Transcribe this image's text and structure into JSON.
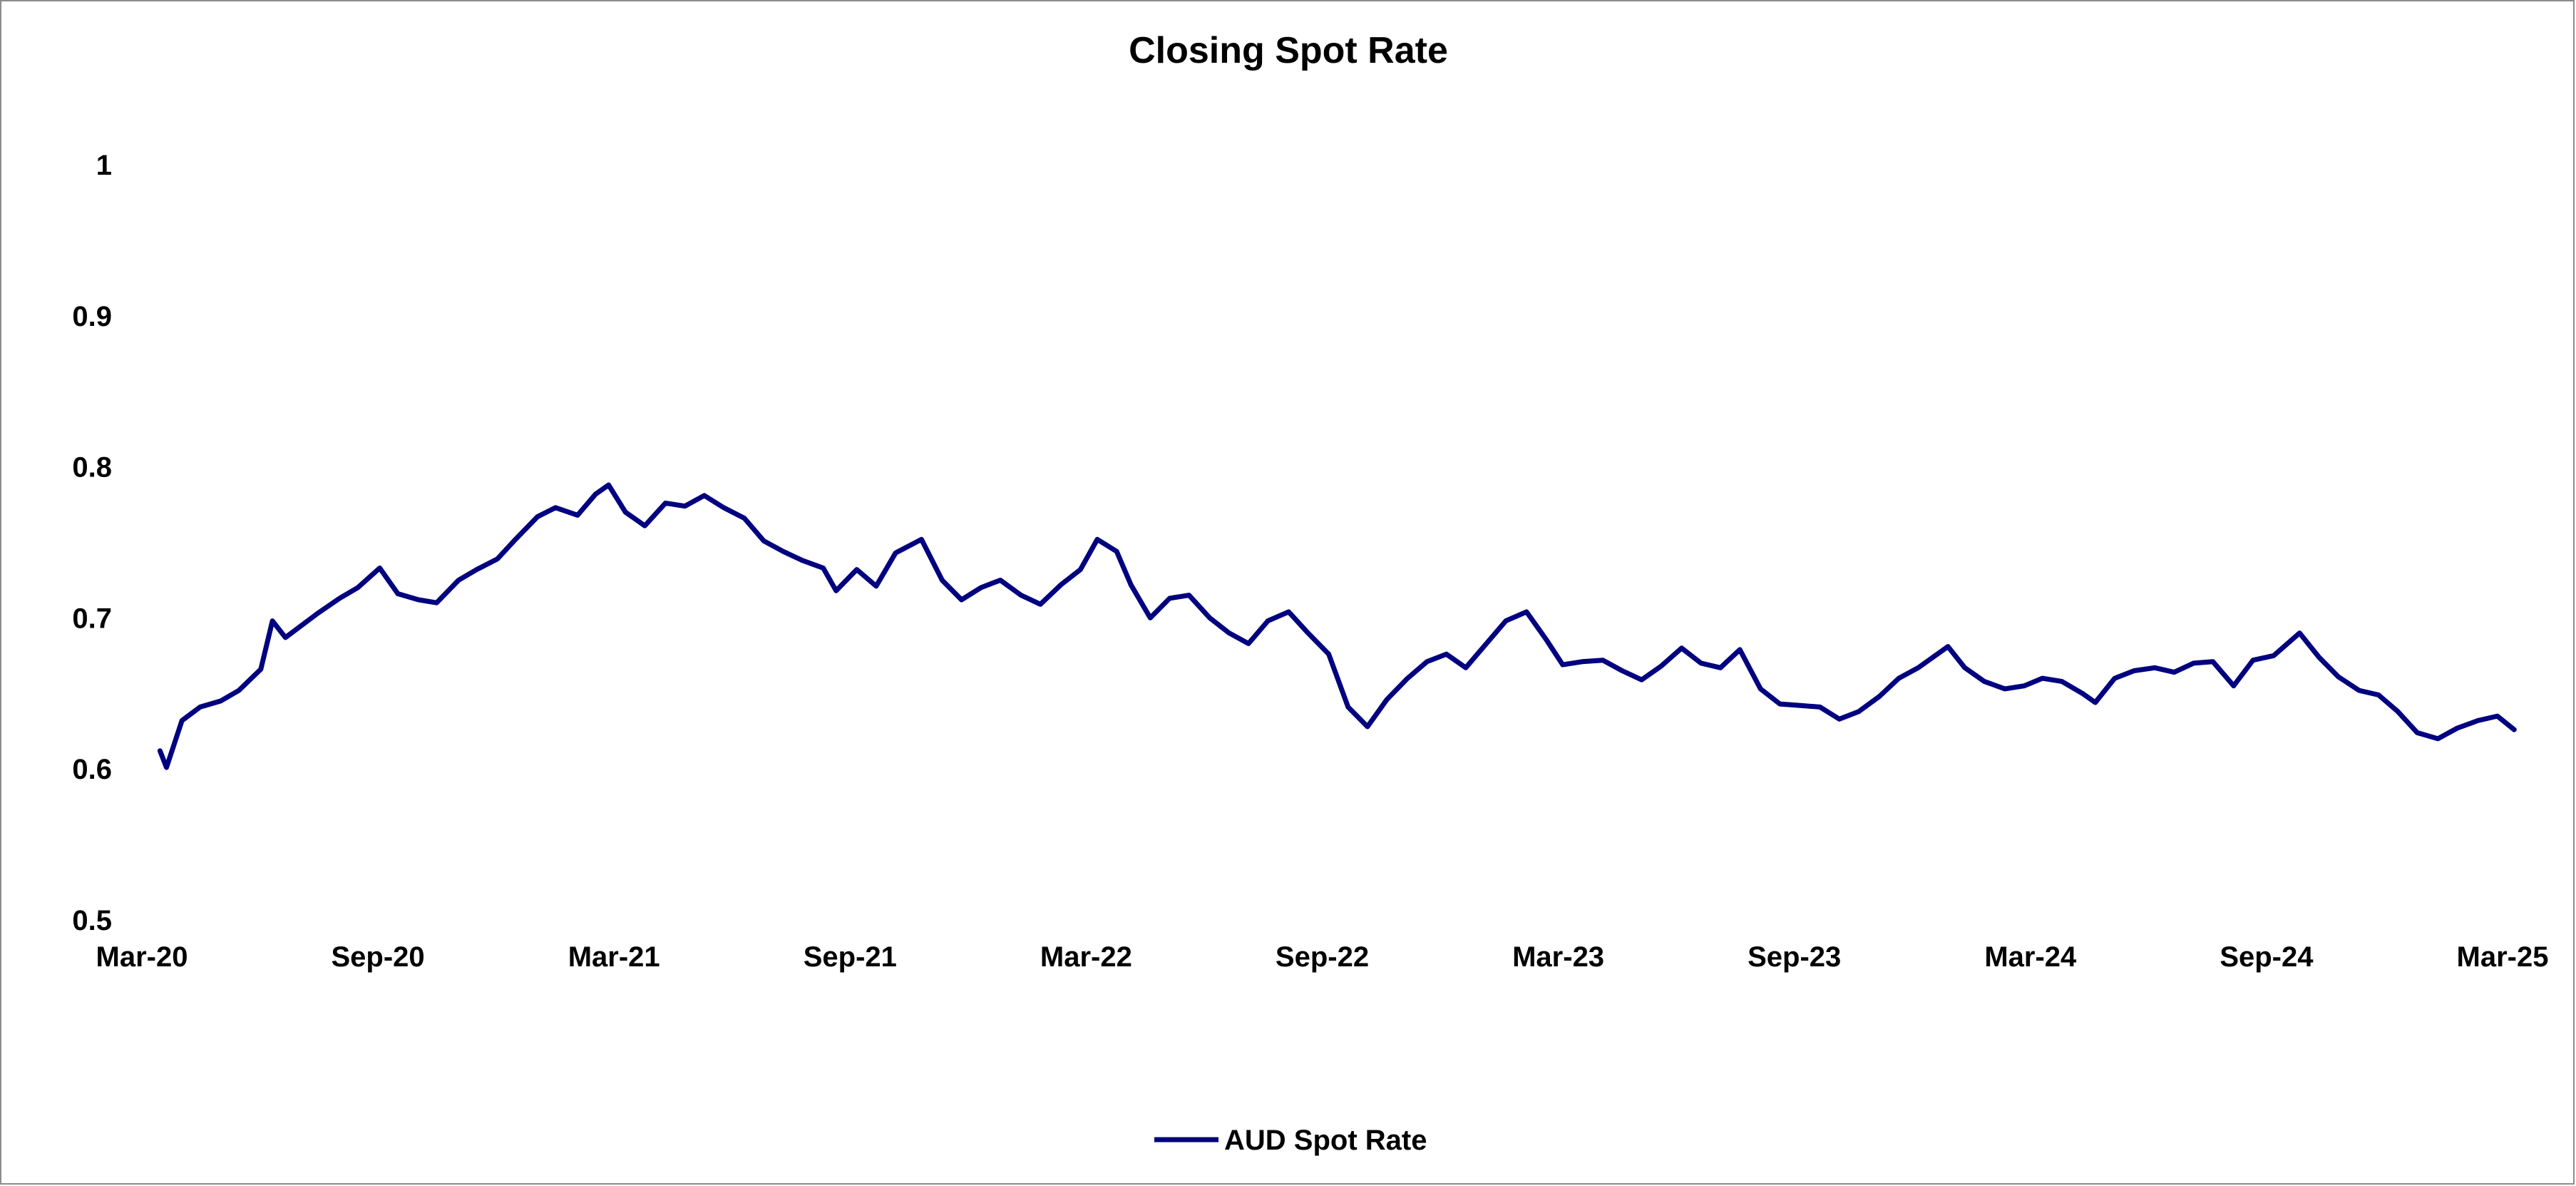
{
  "chart_data": {
    "type": "line",
    "title": "Closing Spot Rate",
    "xlabel": "",
    "ylabel": "",
    "ylim": [
      0.5,
      1.0
    ],
    "yticks": [
      "1",
      "0.9",
      "0.8",
      "0.7",
      "0.6",
      "0.5"
    ],
    "xticks": [
      "Mar-20",
      "Sep-20",
      "Mar-21",
      "Sep-21",
      "Mar-22",
      "Sep-22",
      "Mar-23",
      "Sep-23",
      "Mar-24",
      "Sep-24",
      "Mar-25"
    ],
    "grid": false,
    "legend_position": "bottom",
    "colors": {
      "series": "#000080"
    },
    "series": [
      {
        "name": "AUD Spot Rate",
        "x": [
          "2020-03-15",
          "2020-03-20",
          "2020-04-01",
          "2020-04-15",
          "2020-05-01",
          "2020-05-15",
          "2020-06-01",
          "2020-06-10",
          "2020-06-20",
          "2020-07-01",
          "2020-07-15",
          "2020-08-01",
          "2020-08-15",
          "2020-09-01",
          "2020-09-15",
          "2020-10-01",
          "2020-10-15",
          "2020-11-01",
          "2020-11-15",
          "2020-12-01",
          "2020-12-15",
          "2021-01-01",
          "2021-01-15",
          "2021-02-01",
          "2021-02-15",
          "2021-02-25",
          "2021-03-10",
          "2021-03-25",
          "2021-04-10",
          "2021-04-25",
          "2021-05-10",
          "2021-05-25",
          "2021-06-10",
          "2021-06-25",
          "2021-07-10",
          "2021-07-25",
          "2021-08-10",
          "2021-08-20",
          "2021-09-05",
          "2021-09-20",
          "2021-10-05",
          "2021-10-25",
          "2021-11-10",
          "2021-11-25",
          "2021-12-10",
          "2021-12-25",
          "2022-01-10",
          "2022-01-25",
          "2022-02-10",
          "2022-02-25",
          "2022-03-10",
          "2022-03-25",
          "2022-04-05",
          "2022-04-20",
          "2022-05-05",
          "2022-05-20",
          "2022-06-05",
          "2022-06-20",
          "2022-07-05",
          "2022-07-20",
          "2022-08-05",
          "2022-08-20",
          "2022-09-05",
          "2022-09-20",
          "2022-10-05",
          "2022-10-20",
          "2022-11-05",
          "2022-11-20",
          "2022-12-05",
          "2022-12-20",
          "2023-01-05",
          "2023-01-20",
          "2023-02-05",
          "2023-02-20",
          "2023-03-05",
          "2023-03-20",
          "2023-04-05",
          "2023-04-20",
          "2023-05-05",
          "2023-05-20",
          "2023-06-05",
          "2023-06-20",
          "2023-07-05",
          "2023-07-20",
          "2023-08-05",
          "2023-08-20",
          "2023-09-05",
          "2023-09-20",
          "2023-10-05",
          "2023-10-20",
          "2023-11-05",
          "2023-11-20",
          "2023-12-05",
          "2023-12-28",
          "2024-01-10",
          "2024-01-25",
          "2024-02-10",
          "2024-02-25",
          "2024-03-10",
          "2024-03-25",
          "2024-04-10",
          "2024-04-20",
          "2024-05-05",
          "2024-05-20",
          "2024-06-05",
          "2024-06-20",
          "2024-07-05",
          "2024-07-20",
          "2024-08-05",
          "2024-08-20",
          "2024-09-05",
          "2024-09-25",
          "2024-10-10",
          "2024-10-25",
          "2024-11-10",
          "2024-11-25",
          "2024-12-10",
          "2024-12-25",
          "2025-01-10",
          "2025-01-25",
          "2025-02-10",
          "2025-02-25",
          "2025-03-10"
        ],
        "values": [
          0.612,
          0.601,
          0.632,
          0.641,
          0.645,
          0.652,
          0.666,
          0.698,
          0.687,
          0.694,
          0.703,
          0.713,
          0.72,
          0.733,
          0.716,
          0.712,
          0.71,
          0.725,
          0.732,
          0.739,
          0.752,
          0.767,
          0.773,
          0.768,
          0.782,
          0.788,
          0.77,
          0.761,
          0.776,
          0.774,
          0.781,
          0.773,
          0.766,
          0.751,
          0.744,
          0.738,
          0.733,
          0.718,
          0.732,
          0.721,
          0.743,
          0.752,
          0.725,
          0.712,
          0.72,
          0.725,
          0.715,
          0.709,
          0.722,
          0.732,
          0.752,
          0.744,
          0.722,
          0.7,
          0.713,
          0.715,
          0.7,
          0.69,
          0.683,
          0.698,
          0.704,
          0.69,
          0.676,
          0.641,
          0.628,
          0.646,
          0.66,
          0.671,
          0.676,
          0.667,
          0.683,
          0.698,
          0.704,
          0.686,
          0.669,
          0.671,
          0.672,
          0.665,
          0.659,
          0.668,
          0.68,
          0.67,
          0.667,
          0.679,
          0.653,
          0.643,
          0.642,
          0.641,
          0.633,
          0.638,
          0.648,
          0.66,
          0.667,
          0.681,
          0.667,
          0.658,
          0.653,
          0.655,
          0.66,
          0.658,
          0.65,
          0.644,
          0.66,
          0.665,
          0.667,
          0.664,
          0.67,
          0.671,
          0.655,
          0.672,
          0.675,
          0.69,
          0.674,
          0.661,
          0.652,
          0.649,
          0.638,
          0.624,
          0.62,
          0.627,
          0.632,
          0.635,
          0.626
        ]
      }
    ]
  }
}
